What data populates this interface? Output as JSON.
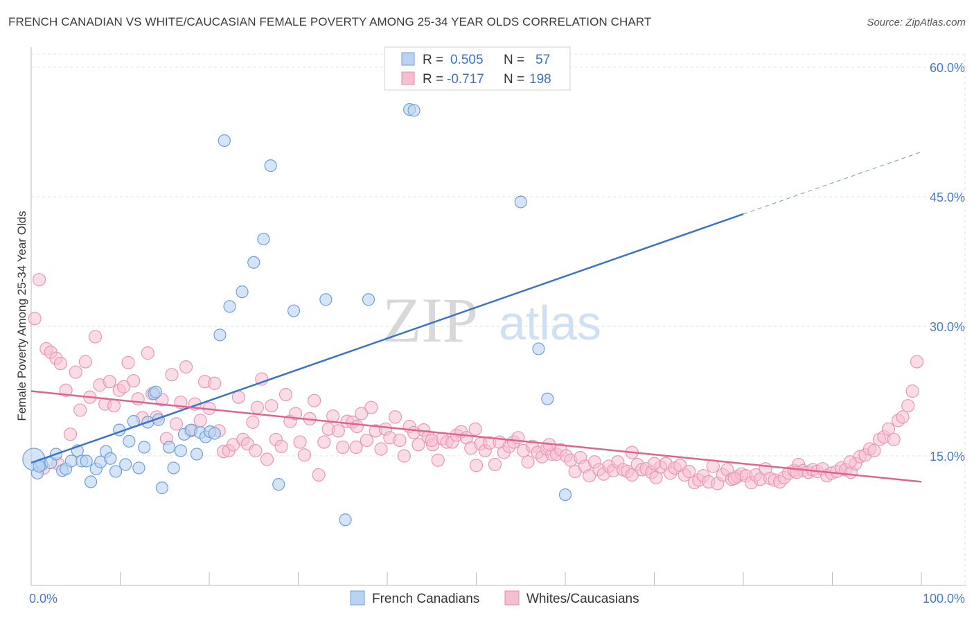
{
  "title": "FRENCH CANADIAN VS WHITE/CAUCASIAN FEMALE POVERTY AMONG 25-34 YEAR OLDS CORRELATION CHART",
  "source": "Source: ZipAtlas.com",
  "watermark": {
    "zip": "ZIP",
    "atlas": "atlas"
  },
  "colors": {
    "blue": "#3a73cc",
    "blue_fill": "#b9d3f2",
    "pink": "#e0628f",
    "pink_fill": "#f6bfd1",
    "grid": "#e0e0e0"
  },
  "legend": {
    "rows": [
      {
        "r_label": "R =",
        "r_value": "0.505",
        "n_label": "N =",
        "n_value": "57"
      },
      {
        "r_label": "R =",
        "r_value": "-0.717",
        "n_label": "N =",
        "n_value": "198"
      }
    ]
  },
  "chart_data": {
    "type": "scatter",
    "title": "FRENCH CANADIAN VS WHITE/CAUCASIAN FEMALE POVERTY AMONG 25-34 YEAR OLDS CORRELATION CHART",
    "xlabel": "",
    "ylabel": "Female Poverty Among 25-34 Year Olds",
    "xlim": [
      0,
      100
    ],
    "ylim": [
      0,
      63
    ],
    "x_tick_labels": [
      "0.0%",
      "100.0%"
    ],
    "y_ticks": [
      15,
      30,
      45,
      60
    ],
    "y_tick_labels": [
      "15.0%",
      "30.0%",
      "45.0%",
      "60.0%"
    ],
    "legend_position": "top-center",
    "series": [
      {
        "name": "French Canadians",
        "points": [
          [
            0.3,
            14.6
          ],
          [
            0.7,
            13.0
          ],
          [
            1.2,
            14.0
          ],
          [
            2.2,
            14.2
          ],
          [
            2.8,
            15.2
          ],
          [
            3.5,
            13.3
          ],
          [
            3.9,
            13.5
          ],
          [
            4.5,
            14.4
          ],
          [
            5.2,
            15.6
          ],
          [
            5.7,
            14.4
          ],
          [
            6.2,
            14.4
          ],
          [
            6.7,
            12.0
          ],
          [
            7.3,
            13.5
          ],
          [
            7.8,
            14.3
          ],
          [
            8.4,
            15.5
          ],
          [
            8.9,
            14.7
          ],
          [
            9.5,
            13.2
          ],
          [
            9.9,
            18.0
          ],
          [
            10.6,
            14.0
          ],
          [
            11.0,
            16.7
          ],
          [
            11.5,
            19.0
          ],
          [
            12.1,
            13.6
          ],
          [
            12.7,
            16.0
          ],
          [
            13.1,
            18.9
          ],
          [
            13.8,
            22.2
          ],
          [
            14.0,
            22.4
          ],
          [
            14.3,
            19.2
          ],
          [
            14.7,
            11.3
          ],
          [
            15.5,
            16.0
          ],
          [
            16.0,
            13.6
          ],
          [
            16.8,
            15.6
          ],
          [
            17.2,
            17.5
          ],
          [
            18.0,
            18.0
          ],
          [
            18.6,
            15.2
          ],
          [
            19.0,
            17.7
          ],
          [
            19.6,
            17.2
          ],
          [
            20.1,
            17.8
          ],
          [
            20.6,
            17.6
          ],
          [
            21.2,
            29.0
          ],
          [
            21.7,
            51.5
          ],
          [
            22.3,
            32.3
          ],
          [
            23.7,
            34.0
          ],
          [
            25.0,
            37.4
          ],
          [
            26.1,
            40.1
          ],
          [
            26.9,
            48.6
          ],
          [
            27.8,
            11.7
          ],
          [
            29.5,
            31.8
          ],
          [
            33.1,
            33.1
          ],
          [
            35.3,
            7.6
          ],
          [
            37.9,
            33.1
          ],
          [
            42.5,
            55.1
          ],
          [
            43.0,
            55.0
          ],
          [
            55.0,
            44.4
          ],
          [
            57.0,
            27.4
          ],
          [
            58.0,
            21.6
          ],
          [
            60.0,
            10.5
          ],
          [
            0.9,
            13.8
          ]
        ],
        "sizes_note": "first point drawn larger",
        "trend": {
          "x": [
            0,
            80,
            100
          ],
          "y": [
            14.2,
            43.0,
            50.2
          ],
          "solid_until": 80
        }
      },
      {
        "name": "Whites/Caucasians",
        "points": [
          [
            0.4,
            30.9
          ],
          [
            0.9,
            35.4
          ],
          [
            1.7,
            27.4
          ],
          [
            2.2,
            27.0
          ],
          [
            2.8,
            26.3
          ],
          [
            3.3,
            25.7
          ],
          [
            3.9,
            22.6
          ],
          [
            4.4,
            17.5
          ],
          [
            5.0,
            24.7
          ],
          [
            5.5,
            20.3
          ],
          [
            6.1,
            25.9
          ],
          [
            6.6,
            21.8
          ],
          [
            7.2,
            28.8
          ],
          [
            7.7,
            23.2
          ],
          [
            8.3,
            21.0
          ],
          [
            8.8,
            23.6
          ],
          [
            9.3,
            20.8
          ],
          [
            9.9,
            22.6
          ],
          [
            10.4,
            23.0
          ],
          [
            10.9,
            25.8
          ],
          [
            11.5,
            23.7
          ],
          [
            12.0,
            21.6
          ],
          [
            12.5,
            19.4
          ],
          [
            13.1,
            26.9
          ],
          [
            13.6,
            22.2
          ],
          [
            14.1,
            19.5
          ],
          [
            14.7,
            21.5
          ],
          [
            15.2,
            17.0
          ],
          [
            15.8,
            24.4
          ],
          [
            16.3,
            18.7
          ],
          [
            16.8,
            21.2
          ],
          [
            17.4,
            25.3
          ],
          [
            17.9,
            17.9
          ],
          [
            18.4,
            21.0
          ],
          [
            19.0,
            19.1
          ],
          [
            19.5,
            23.6
          ],
          [
            20.0,
            20.5
          ],
          [
            20.6,
            23.4
          ],
          [
            21.1,
            17.9
          ],
          [
            21.6,
            15.5
          ],
          [
            22.2,
            15.6
          ],
          [
            22.7,
            16.3
          ],
          [
            23.3,
            21.8
          ],
          [
            23.8,
            16.9
          ],
          [
            24.3,
            16.4
          ],
          [
            24.9,
            18.9
          ],
          [
            25.4,
            20.6
          ],
          [
            25.9,
            23.9
          ],
          [
            26.5,
            14.6
          ],
          [
            27.0,
            20.8
          ],
          [
            27.5,
            16.9
          ],
          [
            28.1,
            16.1
          ],
          [
            28.6,
            22.1
          ],
          [
            29.1,
            19.0
          ],
          [
            29.7,
            19.9
          ],
          [
            30.2,
            16.6
          ],
          [
            30.7,
            15.1
          ],
          [
            31.3,
            19.3
          ],
          [
            31.8,
            21.4
          ],
          [
            32.3,
            12.8
          ],
          [
            32.9,
            16.6
          ],
          [
            33.4,
            18.1
          ],
          [
            33.9,
            19.6
          ],
          [
            34.5,
            17.9
          ],
          [
            35.0,
            16.0
          ],
          [
            35.5,
            19.0
          ],
          [
            36.1,
            18.9
          ],
          [
            36.6,
            18.4
          ],
          [
            37.1,
            19.9
          ],
          [
            37.7,
            16.8
          ],
          [
            38.2,
            20.6
          ],
          [
            38.7,
            17.9
          ],
          [
            39.3,
            15.8
          ],
          [
            39.8,
            18.1
          ],
          [
            40.3,
            17.1
          ],
          [
            40.9,
            19.5
          ],
          [
            41.4,
            16.8
          ],
          [
            41.9,
            15.0
          ],
          [
            42.5,
            18.4
          ],
          [
            43.0,
            17.7
          ],
          [
            43.5,
            16.3
          ],
          [
            44.1,
            18.0
          ],
          [
            44.6,
            17.2
          ],
          [
            45.1,
            16.3
          ],
          [
            45.7,
            14.5
          ],
          [
            46.2,
            17.0
          ],
          [
            46.7,
            16.6
          ],
          [
            47.3,
            16.6
          ],
          [
            47.8,
            17.4
          ],
          [
            48.3,
            17.8
          ],
          [
            48.9,
            17.1
          ],
          [
            49.4,
            15.9
          ],
          [
            49.9,
            18.1
          ],
          [
            50.5,
            16.4
          ],
          [
            51.0,
            15.6
          ],
          [
            51.5,
            16.5
          ],
          [
            52.1,
            14.0
          ],
          [
            52.6,
            16.6
          ],
          [
            53.1,
            15.4
          ],
          [
            53.7,
            16.1
          ],
          [
            54.2,
            16.6
          ],
          [
            54.7,
            17.1
          ],
          [
            55.3,
            15.6
          ],
          [
            55.8,
            14.3
          ],
          [
            56.3,
            16.1
          ],
          [
            56.9,
            15.4
          ],
          [
            57.4,
            14.9
          ],
          [
            57.9,
            15.8
          ],
          [
            58.5,
            15.2
          ],
          [
            59.0,
            15.2
          ],
          [
            59.5,
            15.7
          ],
          [
            60.1,
            15.0
          ],
          [
            60.6,
            14.5
          ],
          [
            61.1,
            13.2
          ],
          [
            61.7,
            14.8
          ],
          [
            62.2,
            13.8
          ],
          [
            62.7,
            12.7
          ],
          [
            63.3,
            14.3
          ],
          [
            63.8,
            13.4
          ],
          [
            64.3,
            12.9
          ],
          [
            64.9,
            13.8
          ],
          [
            65.4,
            13.3
          ],
          [
            65.9,
            14.3
          ],
          [
            66.5,
            13.4
          ],
          [
            67.0,
            13.2
          ],
          [
            67.5,
            12.8
          ],
          [
            68.1,
            14.0
          ],
          [
            68.6,
            13.4
          ],
          [
            69.1,
            13.5
          ],
          [
            69.7,
            13.1
          ],
          [
            70.2,
            12.5
          ],
          [
            70.7,
            13.7
          ],
          [
            71.3,
            14.1
          ],
          [
            71.8,
            13.0
          ],
          [
            72.3,
            13.6
          ],
          [
            72.9,
            13.9
          ],
          [
            73.4,
            12.8
          ],
          [
            73.9,
            13.2
          ],
          [
            74.5,
            11.9
          ],
          [
            75.0,
            12.2
          ],
          [
            75.5,
            12.7
          ],
          [
            76.1,
            12.0
          ],
          [
            76.6,
            13.8
          ],
          [
            77.1,
            11.8
          ],
          [
            77.7,
            12.8
          ],
          [
            78.2,
            13.4
          ],
          [
            78.7,
            12.3
          ],
          [
            79.3,
            12.6
          ],
          [
            79.8,
            12.9
          ],
          [
            80.3,
            12.7
          ],
          [
            80.9,
            11.9
          ],
          [
            81.4,
            12.8
          ],
          [
            81.9,
            12.3
          ],
          [
            82.5,
            13.5
          ],
          [
            83.0,
            12.4
          ],
          [
            83.5,
            12.2
          ],
          [
            84.1,
            12.0
          ],
          [
            84.6,
            12.5
          ],
          [
            85.1,
            13.0
          ],
          [
            85.7,
            13.3
          ],
          [
            86.2,
            14.0
          ],
          [
            86.7,
            13.3
          ],
          [
            87.3,
            13.1
          ],
          [
            87.8,
            13.4
          ],
          [
            88.3,
            13.2
          ],
          [
            88.9,
            13.5
          ],
          [
            89.4,
            12.7
          ],
          [
            89.9,
            13.0
          ],
          [
            90.5,
            13.2
          ],
          [
            91.0,
            13.6
          ],
          [
            91.5,
            13.4
          ],
          [
            92.1,
            13.1
          ],
          [
            92.6,
            14.1
          ],
          [
            93.1,
            14.9
          ],
          [
            93.7,
            15.1
          ],
          [
            94.2,
            15.8
          ],
          [
            94.7,
            15.6
          ],
          [
            95.3,
            16.9
          ],
          [
            95.8,
            17.2
          ],
          [
            96.3,
            18.1
          ],
          [
            96.9,
            16.9
          ],
          [
            97.4,
            19.1
          ],
          [
            97.9,
            19.5
          ],
          [
            98.5,
            20.8
          ],
          [
            99.0,
            22.5
          ],
          [
            99.5,
            25.9
          ],
          [
            1.4,
            13.6
          ],
          [
            3.0,
            14.1
          ],
          [
            25.2,
            15.6
          ],
          [
            50.0,
            13.9
          ],
          [
            67.5,
            15.4
          ],
          [
            86.0,
            13.1
          ],
          [
            45.0,
            16.8
          ],
          [
            58.2,
            16.3
          ],
          [
            70.0,
            14.1
          ],
          [
            92.0,
            14.3
          ],
          [
            79.0,
            12.4
          ],
          [
            36.5,
            16.0
          ]
        ],
        "trend": {
          "x": [
            0,
            100
          ],
          "y": [
            22.5,
            12.0
          ]
        }
      }
    ]
  },
  "bottom_legend": [
    "French Canadians",
    "Whites/Caucasians"
  ]
}
